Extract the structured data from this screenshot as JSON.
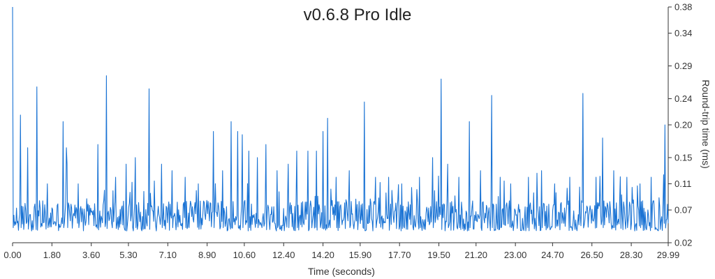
{
  "chart_data": {
    "type": "line",
    "title": "v0.6.8 Pro Idle",
    "xlabel": "Time (seconds)",
    "ylabel": "Round-trip time (ms)",
    "xlim": [
      0.0,
      29.99
    ],
    "ylim": [
      0.02,
      0.38
    ],
    "x_ticks": [
      "0.00",
      "1.80",
      "3.60",
      "5.30",
      "7.10",
      "8.90",
      "10.60",
      "12.40",
      "14.20",
      "15.90",
      "17.70",
      "19.50",
      "21.20",
      "23.00",
      "24.70",
      "26.50",
      "28.30",
      "29.99"
    ],
    "x_tick_values": [
      0.0,
      1.8,
      3.6,
      5.3,
      7.1,
      8.9,
      10.6,
      12.4,
      14.2,
      15.9,
      17.7,
      19.5,
      21.2,
      23.0,
      24.7,
      26.5,
      28.3,
      29.99
    ],
    "y_ticks": [
      "0.38",
      "0.34",
      "0.29",
      "0.24",
      "0.20",
      "0.15",
      "0.11",
      "0.07",
      "0.02"
    ],
    "y_tick_values": [
      0.38,
      0.34,
      0.29,
      0.24,
      0.2,
      0.15,
      0.11,
      0.07,
      0.02
    ],
    "grid": false,
    "y_axis_side": "right",
    "line_color": "#1a73d4",
    "series": [
      {
        "sample_count": 1000,
        "x_start": 0.0,
        "x_end": 29.99,
        "baseline_range": [
          0.038,
          0.085
        ],
        "peaks": [
          [
            0.0,
            0.38
          ],
          [
            0.35,
            0.215
          ],
          [
            0.7,
            0.165
          ],
          [
            1.1,
            0.258
          ],
          [
            1.6,
            0.11
          ],
          [
            2.3,
            0.205
          ],
          [
            2.45,
            0.165
          ],
          [
            2.5,
            0.14
          ],
          [
            3.0,
            0.11
          ],
          [
            3.9,
            0.17
          ],
          [
            4.3,
            0.275
          ],
          [
            4.7,
            0.12
          ],
          [
            5.2,
            0.14
          ],
          [
            5.6,
            0.15
          ],
          [
            6.25,
            0.255
          ],
          [
            6.8,
            0.14
          ],
          [
            7.3,
            0.13
          ],
          [
            7.9,
            0.12
          ],
          [
            8.5,
            0.11
          ],
          [
            9.2,
            0.19
          ],
          [
            9.6,
            0.13
          ],
          [
            10.0,
            0.205
          ],
          [
            10.3,
            0.19
          ],
          [
            10.5,
            0.185
          ],
          [
            10.8,
            0.16
          ],
          [
            11.2,
            0.15
          ],
          [
            11.6,
            0.17
          ],
          [
            12.1,
            0.13
          ],
          [
            12.6,
            0.14
          ],
          [
            13.0,
            0.16
          ],
          [
            13.5,
            0.16
          ],
          [
            13.9,
            0.16
          ],
          [
            14.2,
            0.19
          ],
          [
            14.4,
            0.21
          ],
          [
            14.8,
            0.12
          ],
          [
            15.4,
            0.13
          ],
          [
            16.1,
            0.235
          ],
          [
            16.6,
            0.12
          ],
          [
            17.2,
            0.12
          ],
          [
            17.8,
            0.11
          ],
          [
            18.6,
            0.12
          ],
          [
            19.2,
            0.15
          ],
          [
            19.6,
            0.27
          ],
          [
            19.9,
            0.14
          ],
          [
            20.4,
            0.12
          ],
          [
            20.9,
            0.205
          ],
          [
            21.4,
            0.13
          ],
          [
            21.9,
            0.245
          ],
          [
            22.3,
            0.12
          ],
          [
            22.8,
            0.11
          ],
          [
            23.6,
            0.12
          ],
          [
            24.2,
            0.13
          ],
          [
            24.8,
            0.11
          ],
          [
            25.5,
            0.12
          ],
          [
            26.1,
            0.248
          ],
          [
            26.7,
            0.12
          ],
          [
            27.0,
            0.18
          ],
          [
            27.5,
            0.13
          ],
          [
            28.1,
            0.12
          ],
          [
            28.7,
            0.11
          ],
          [
            29.2,
            0.12
          ],
          [
            29.85,
            0.2
          ]
        ]
      }
    ]
  }
}
